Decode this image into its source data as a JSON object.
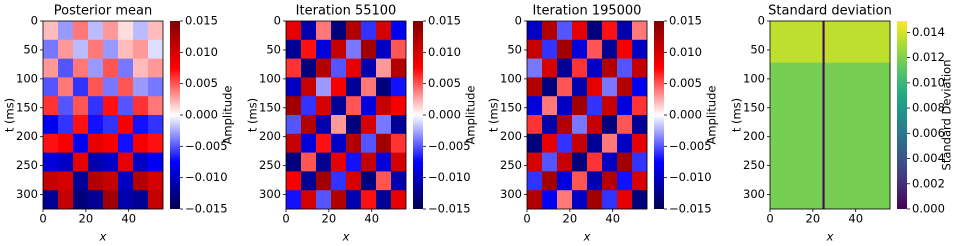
{
  "chart_data": [
    {
      "type": "heatmap",
      "title": "Posterior mean",
      "xlabel": "x",
      "ylabel": "t (ms)",
      "xlim": [
        0,
        56
      ],
      "ylim": [
        0,
        325
      ],
      "y_inverted": true,
      "xticks": [
        0,
        20,
        40
      ],
      "yticks": [
        0,
        50,
        100,
        150,
        200,
        250,
        300
      ],
      "xbins": [
        0,
        7,
        14,
        21,
        28,
        35,
        42,
        49,
        56
      ],
      "ybins": [
        0,
        32.5,
        65,
        97.5,
        130,
        162.5,
        195,
        227.5,
        260,
        292.5,
        325
      ],
      "values": [
        [
          0.002,
          -0.003,
          0.004,
          -0.002,
          0.003,
          0.001,
          -0.002,
          0.002
        ],
        [
          -0.004,
          0.003,
          -0.002,
          0.004,
          -0.003,
          0.002,
          0.003,
          -0.001
        ],
        [
          0.003,
          -0.005,
          0.004,
          -0.003,
          0.005,
          -0.004,
          0.002,
          0.003
        ],
        [
          -0.005,
          0.004,
          -0.006,
          0.005,
          -0.004,
          0.005,
          -0.003,
          -0.004
        ],
        [
          0.006,
          -0.005,
          0.005,
          -0.006,
          0.007,
          -0.005,
          0.006,
          0.004
        ],
        [
          -0.008,
          -0.006,
          0.007,
          -0.007,
          -0.006,
          0.008,
          -0.007,
          -0.006
        ],
        [
          0.007,
          0.008,
          -0.008,
          0.009,
          0.008,
          -0.007,
          0.008,
          0.007
        ],
        [
          -0.009,
          -0.01,
          0.009,
          -0.011,
          -0.01,
          0.009,
          -0.01,
          -0.008
        ],
        [
          0.011,
          0.01,
          -0.012,
          0.012,
          0.011,
          -0.01,
          0.012,
          0.01
        ],
        [
          -0.012,
          0.011,
          -0.013,
          -0.012,
          0.013,
          -0.011,
          -0.012,
          0.011
        ]
      ],
      "colormap": "seismic",
      "clim": [
        -0.015,
        0.015
      ],
      "colorbar_label": "Amplitude",
      "cticks": [
        {
          "value": -0.015,
          "label": "−0.015"
        },
        {
          "value": -0.01,
          "label": "−0.010"
        },
        {
          "value": -0.005,
          "label": "−0.005"
        },
        {
          "value": 0,
          "label": "0.000"
        },
        0.005,
        {
          "value": 0.01,
          "label": "0.010"
        },
        0.015
      ]
    },
    {
      "type": "heatmap",
      "title": "Iteration 55100",
      "xlabel": "x",
      "ylabel": "t (ms)",
      "xlim": [
        0,
        56
      ],
      "ylim": [
        0,
        325
      ],
      "y_inverted": true,
      "xticks": [
        0,
        20,
        40
      ],
      "yticks": [
        0,
        50,
        100,
        150,
        200,
        250,
        300
      ],
      "xbins": [
        0,
        7,
        14,
        21,
        28,
        35,
        42,
        49,
        56
      ],
      "ybins": [
        0,
        32.5,
        65,
        97.5,
        130,
        162.5,
        195,
        227.5,
        260,
        292.5,
        325
      ],
      "values": [
        [
          0.009,
          -0.011,
          0.004,
          -0.013,
          0.012,
          -0.006,
          0.01,
          -0.008
        ],
        [
          -0.012,
          0.007,
          -0.009,
          0.011,
          -0.004,
          0.013,
          -0.01,
          0.005
        ],
        [
          0.006,
          -0.013,
          0.012,
          -0.005,
          0.009,
          -0.011,
          0.003,
          0.012
        ],
        [
          -0.01,
          0.011,
          -0.003,
          0.008,
          -0.012,
          0.004,
          -0.013,
          -0.007
        ],
        [
          0.013,
          -0.006,
          0.01,
          -0.012,
          0.005,
          -0.009,
          0.011,
          0.008
        ],
        [
          -0.005,
          0.012,
          -0.011,
          0.003,
          -0.013,
          0.01,
          -0.004,
          -0.012
        ],
        [
          0.011,
          -0.009,
          0.007,
          -0.01,
          0.012,
          -0.005,
          0.013,
          0.006
        ],
        [
          -0.013,
          0.005,
          -0.012,
          0.009,
          -0.007,
          0.011,
          -0.009,
          0.01
        ],
        [
          0.008,
          -0.012,
          0.013,
          -0.006,
          0.01,
          -0.013,
          0.005,
          -0.011
        ],
        [
          -0.007,
          0.01,
          -0.005,
          0.012,
          -0.011,
          0.007,
          -0.012,
          0.009
        ]
      ],
      "colormap": "seismic",
      "clim": [
        -0.015,
        0.015
      ],
      "colorbar_label": "Amplitude",
      "cticks": [
        {
          "value": -0.015,
          "label": "−0.015"
        },
        {
          "value": -0.01,
          "label": "−0.010"
        },
        {
          "value": -0.005,
          "label": "−0.005"
        },
        {
          "value": 0,
          "label": "0.000"
        },
        0.005,
        {
          "value": 0.01,
          "label": "0.010"
        },
        0.015
      ]
    },
    {
      "type": "heatmap",
      "title": "Iteration 195000",
      "xlabel": "x",
      "ylabel": "t (ms)",
      "xlim": [
        0,
        56
      ],
      "ylim": [
        0,
        325
      ],
      "y_inverted": true,
      "xticks": [
        0,
        20,
        40
      ],
      "yticks": [
        0,
        50,
        100,
        150,
        200,
        250,
        300
      ],
      "xbins": [
        0,
        7,
        14,
        21,
        28,
        35,
        42,
        49,
        56
      ],
      "ybins": [
        0,
        32.5,
        65,
        97.5,
        130,
        162.5,
        195,
        227.5,
        260,
        292.5,
        325
      ],
      "values": [
        [
          -0.01,
          0.012,
          -0.005,
          0.009,
          -0.013,
          0.007,
          -0.011,
          0.004
        ],
        [
          0.011,
          -0.006,
          0.013,
          -0.009,
          0.005,
          -0.012,
          0.008,
          -0.01
        ],
        [
          -0.004,
          0.01,
          -0.012,
          0.006,
          -0.01,
          0.012,
          -0.005,
          0.011
        ],
        [
          0.012,
          -0.013,
          0.005,
          -0.011,
          0.009,
          -0.004,
          0.012,
          -0.008
        ],
        [
          -0.009,
          0.004,
          -0.01,
          0.013,
          -0.006,
          0.011,
          -0.009,
          0.006
        ],
        [
          0.006,
          -0.011,
          0.012,
          -0.004,
          0.011,
          -0.013,
          0.005,
          -0.012
        ],
        [
          -0.013,
          0.009,
          -0.006,
          0.011,
          -0.012,
          0.004,
          -0.01,
          0.009
        ],
        [
          0.01,
          -0.005,
          0.011,
          -0.013,
          0.006,
          -0.01,
          0.013,
          -0.006
        ],
        [
          -0.006,
          0.013,
          -0.009,
          0.005,
          -0.011,
          0.012,
          -0.007,
          0.01
        ],
        [
          0.012,
          -0.008,
          0.004,
          -0.01,
          0.013,
          -0.006,
          0.009,
          -0.013
        ]
      ],
      "colormap": "seismic",
      "clim": [
        -0.015,
        0.015
      ],
      "colorbar_label": "Amplitude",
      "cticks": [
        {
          "value": -0.015,
          "label": "−0.015"
        },
        {
          "value": -0.01,
          "label": "−0.010"
        },
        {
          "value": -0.005,
          "label": "−0.005"
        },
        {
          "value": 0,
          "label": "0.000"
        },
        0.005,
        {
          "value": 0.01,
          "label": "0.010"
        },
        0.015
      ]
    },
    {
      "type": "heatmap",
      "title": "Standard deviation",
      "xlabel": "x",
      "ylabel": "t (ms)",
      "xlim": [
        0,
        56
      ],
      "ylim": [
        0,
        325
      ],
      "y_inverted": true,
      "xticks": [
        0,
        20,
        40
      ],
      "yticks": [
        0,
        50,
        100,
        150,
        200,
        250,
        300
      ],
      "xbins": [
        0,
        24.5,
        25.5,
        56
      ],
      "ybins": [
        0,
        72,
        325
      ],
      "values": [
        [
          0.0135,
          0.0003,
          0.0135
        ],
        [
          0.0118,
          0.0003,
          0.0118
        ]
      ],
      "colormap": "viridis",
      "clim": [
        0,
        0.0149
      ],
      "colorbar_label": "Standard Deviation",
      "cticks": [
        {
          "value": 0,
          "label": "0.000"
        },
        {
          "value": 0.002,
          "label": "0.002"
        },
        {
          "value": 0.004,
          "label": "0.004"
        },
        {
          "value": 0.006,
          "label": "0.006"
        },
        {
          "value": 0.008,
          "label": "0.008"
        },
        {
          "value": 0.01,
          "label": "0.010"
        },
        {
          "value": 0.012,
          "label": "0.012"
        },
        {
          "value": 0.014,
          "label": "0.014"
        }
      ]
    }
  ]
}
